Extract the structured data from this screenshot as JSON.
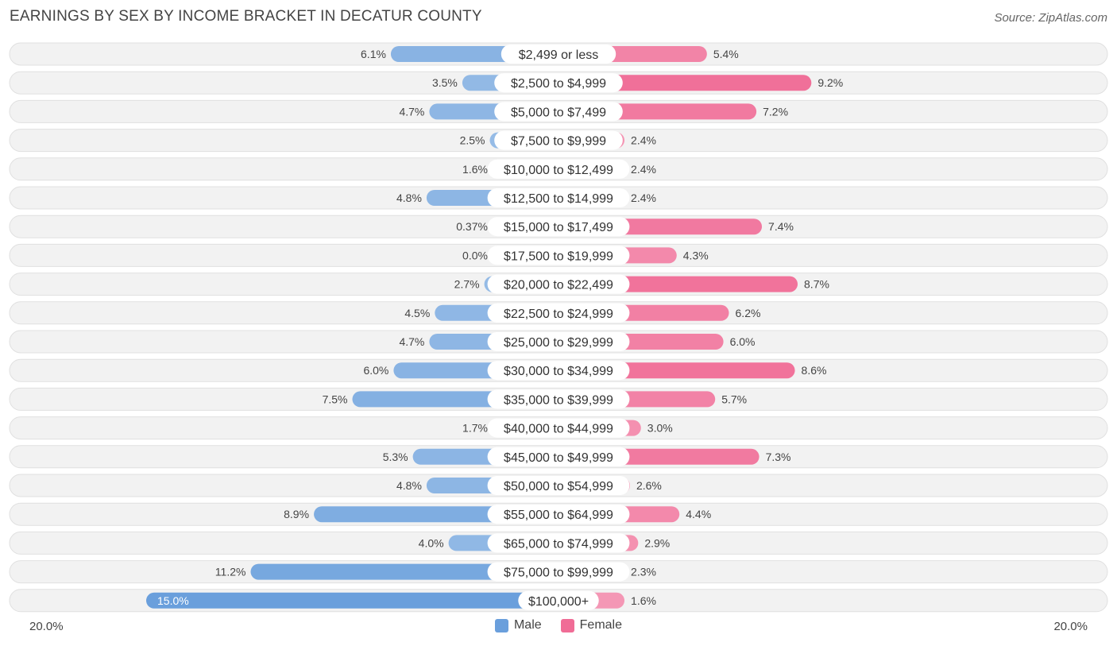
{
  "chart_data": {
    "type": "bar",
    "orientation": "horizontal-diverging",
    "title": "EARNINGS BY SEX BY INCOME BRACKET IN DECATUR COUNTY",
    "source": "Source: ZipAtlas.com",
    "categories": [
      "$2,499 or less",
      "$2,500 to $4,999",
      "$5,000 to $7,499",
      "$7,500 to $9,999",
      "$10,000 to $12,499",
      "$12,500 to $14,999",
      "$15,000 to $17,499",
      "$17,500 to $19,999",
      "$20,000 to $22,499",
      "$22,500 to $24,999",
      "$25,000 to $29,999",
      "$30,000 to $34,999",
      "$35,000 to $39,999",
      "$40,000 to $44,999",
      "$45,000 to $49,999",
      "$50,000 to $54,999",
      "$55,000 to $64,999",
      "$65,000 to $74,999",
      "$75,000 to $99,999",
      "$100,000+"
    ],
    "series": [
      {
        "name": "Male",
        "color": "#6a9fdc",
        "values": [
          6.1,
          3.5,
          4.7,
          2.5,
          1.6,
          4.8,
          0.37,
          0.0,
          2.7,
          4.5,
          4.7,
          6.0,
          7.5,
          1.7,
          5.3,
          4.8,
          8.9,
          4.0,
          11.2,
          15.0
        ],
        "labels": [
          "6.1%",
          "3.5%",
          "4.7%",
          "2.5%",
          "1.6%",
          "4.8%",
          "0.37%",
          "0.0%",
          "2.7%",
          "4.5%",
          "4.7%",
          "6.0%",
          "7.5%",
          "1.7%",
          "5.3%",
          "4.8%",
          "8.9%",
          "4.0%",
          "11.2%",
          "15.0%"
        ]
      },
      {
        "name": "Female",
        "color": "#f06c96",
        "values": [
          5.4,
          9.2,
          7.2,
          2.4,
          2.4,
          2.4,
          7.4,
          4.3,
          8.7,
          6.2,
          6.0,
          8.6,
          5.7,
          3.0,
          7.3,
          2.6,
          4.4,
          2.9,
          2.3,
          1.6
        ],
        "labels": [
          "5.4%",
          "9.2%",
          "7.2%",
          "2.4%",
          "2.4%",
          "2.4%",
          "7.4%",
          "4.3%",
          "8.7%",
          "6.2%",
          "6.0%",
          "8.6%",
          "5.7%",
          "3.0%",
          "7.3%",
          "2.6%",
          "4.4%",
          "2.9%",
          "2.3%",
          "1.6%"
        ]
      }
    ],
    "xlim": [
      -20,
      20
    ],
    "axis_labels": {
      "left": "20.0%",
      "right": "20.0%"
    },
    "legend": [
      "Male",
      "Female"
    ],
    "legend_position": "bottom-center"
  }
}
